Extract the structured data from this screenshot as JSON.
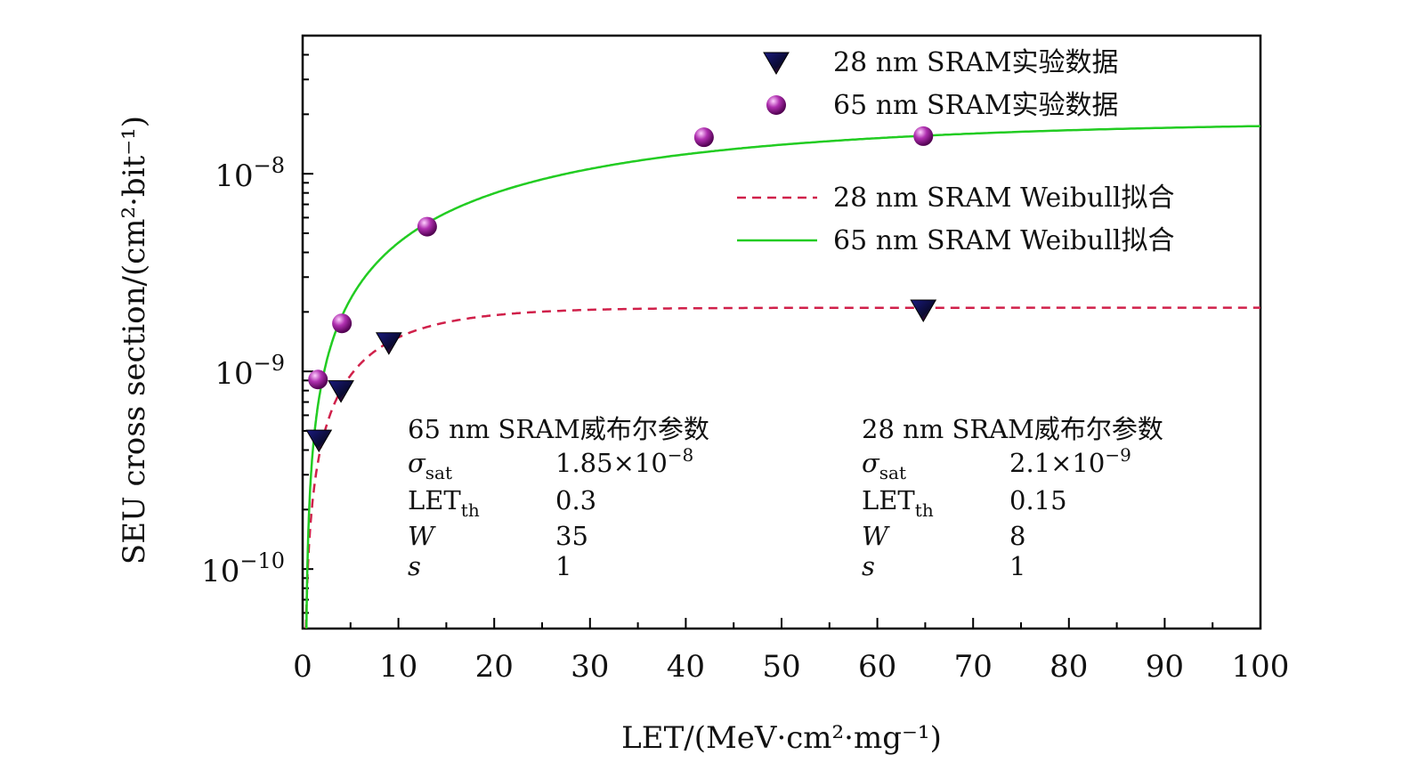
{
  "chart_data": {
    "type": "scatter",
    "xlabel": "LET/(MeV·cm²·mg⁻¹)",
    "ylabel": "SEU cross section/(cm²·bit⁻¹)",
    "xlim": [
      0,
      100
    ],
    "ylim": [
      5e-11,
      5e-08
    ],
    "yscale": "log",
    "grid": false,
    "legend_placement": "top-right",
    "x_ticks": [
      "0",
      "10",
      "20",
      "30",
      "40",
      "50",
      "60",
      "70",
      "80",
      "90",
      "100"
    ],
    "y_ticks": [
      {
        "value": 1e-10,
        "base": "10",
        "exp": "−10"
      },
      {
        "value": 1e-09,
        "base": "10",
        "exp": "−9"
      },
      {
        "value": 1e-08,
        "base": "10",
        "exp": "−8"
      }
    ],
    "series": [
      {
        "name": "28 nm SRAM实验数据",
        "kind": "points",
        "marker": "triangle-down",
        "color": "#1a1a6e",
        "x": [
          1.7,
          4,
          9,
          64.8
        ],
        "y": [
          4.5e-10,
          8e-10,
          1.4e-09,
          2.05e-09
        ]
      },
      {
        "name": "65 nm SRAM实验数据",
        "kind": "points",
        "marker": "sphere",
        "color": "#a020a0",
        "x": [
          1.6,
          4.1,
          13,
          41.9,
          64.8
        ],
        "y": [
          9.1e-10,
          1.75e-09,
          5.4e-09,
          1.53e-08,
          1.55e-08
        ]
      },
      {
        "name": "28 nm SRAM Weibull拟合",
        "kind": "weibull",
        "style": "dashed",
        "color": "#d0204a",
        "sigma_sat": 2.1e-09,
        "let_th": 0.15,
        "W": 8,
        "s": 1
      },
      {
        "name": "65 nm SRAM Weibull拟合",
        "kind": "weibull",
        "style": "solid",
        "color": "#22cc22",
        "sigma_sat": 1.85e-08,
        "let_th": 0.3,
        "W": 35,
        "s": 1
      }
    ],
    "annotations": [
      {
        "title": "65 nm SRAM威布尔参数",
        "rows": [
          [
            "σ",
            "sat",
            "1.85×10",
            "−8"
          ],
          [
            "LET",
            "th",
            "0.3",
            ""
          ],
          [
            "W",
            "",
            "35",
            ""
          ],
          [
            "s",
            "",
            "1",
            ""
          ]
        ]
      },
      {
        "title": "28 nm SRAM威布尔参数",
        "rows": [
          [
            "σ",
            "sat",
            "2.1×10",
            "−9"
          ],
          [
            "LET",
            "th",
            "0.15",
            ""
          ],
          [
            "W",
            "",
            "8",
            ""
          ],
          [
            "s",
            "",
            "1",
            ""
          ]
        ]
      }
    ]
  }
}
